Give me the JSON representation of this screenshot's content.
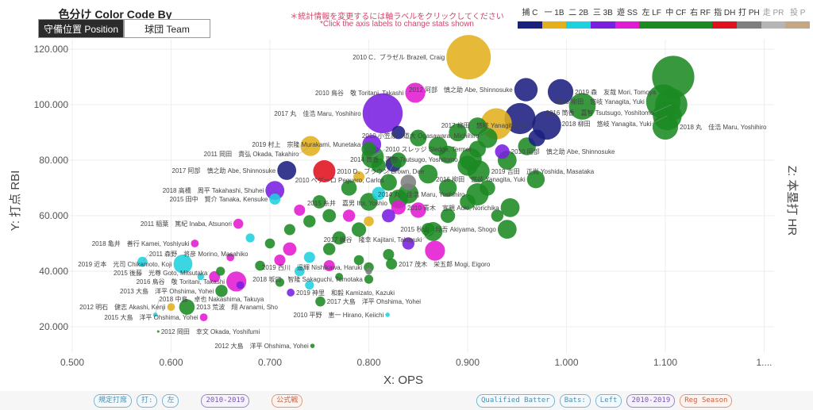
{
  "controls": {
    "title": "色分け Color Code By",
    "position_button": "守備位置 Position",
    "team_button": "球団 Team"
  },
  "notes": {
    "jp": "＊統計情報を変更するには軸ラベルをクリックしてください",
    "en": "*Click the axis labels to change stats shown"
  },
  "legend": [
    {
      "label": "捕 C",
      "key": "C",
      "color": "#1b1f7e"
    },
    {
      "label": "一 1B",
      "key": "1B",
      "color": "#e3b01c"
    },
    {
      "label": "二 2B",
      "key": "2B",
      "color": "#1fd0de"
    },
    {
      "label": "三 3B",
      "key": "3B",
      "color": "#7a1fe0"
    },
    {
      "label": "遊 SS",
      "key": "SS",
      "color": "#e21ad3"
    },
    {
      "label": "左 LF",
      "key": "LF",
      "color": "#1b8a22"
    },
    {
      "label": "中 CF",
      "key": "CF",
      "color": "#1b8a22"
    },
    {
      "label": "右 RF",
      "key": "RF",
      "color": "#1b8a22"
    },
    {
      "label": "指 DH",
      "key": "DH",
      "color": "#e0101c"
    },
    {
      "label": "打 PH",
      "key": "PH",
      "color": "#7f7f7f"
    },
    {
      "label": "走 PR",
      "key": "PR",
      "color": "#b5b5b5"
    },
    {
      "label": "投 P",
      "key": "P",
      "color": "#c4a886"
    }
  ],
  "footer": {
    "left": [
      "規定打席",
      "打:",
      "左",
      "2010-2019",
      "公式戦"
    ],
    "right": [
      "Qualified Batter",
      "Bats:",
      "Left",
      "2010-2019",
      "Reg Season"
    ]
  },
  "chart_data": {
    "type": "scatter",
    "xlabel": "X: OPS",
    "ylabel": "Y: 打点 RBI",
    "zlabel": "Z: 本塁打 HR",
    "xlim": [
      0.475,
      1.21
    ],
    "ylim": [
      12,
      123
    ],
    "x_ticks": [
      0.5,
      0.6,
      0.7,
      0.8,
      0.9,
      1.0,
      1.1,
      1.2
    ],
    "x_tick_labels": [
      "0.500",
      "0.600",
      "0.700",
      "0.800",
      "0.900",
      "1.000",
      "1.100",
      "1...."
    ],
    "y_ticks": [
      20,
      40,
      60,
      80,
      100,
      120
    ],
    "y_tick_labels": [
      "20.000",
      "40.000",
      "60.000",
      "80.000",
      "100.000",
      "120.000"
    ],
    "grid": true,
    "size_encoding": "HR",
    "color_encoding": "position",
    "points": [
      {
        "x": 0.901,
        "y": 117.1,
        "z": 40,
        "pos": "1B",
        "label": "2010 C．ブラゼル Brazell, Craig"
      },
      {
        "x": 1.108,
        "y": 110.0,
        "z": 38,
        "pos": "CF"
      },
      {
        "x": 1.098,
        "y": 101.1,
        "z": 31,
        "pos": "RF",
        "label": "2015 柳田　悠岐 Yanagita, Yuki"
      },
      {
        "x": 1.106,
        "y": 100.0,
        "z": 29,
        "pos": "LF",
        "label": "2016 筒香　嘉智 Tsutsugo, Yoshitomo"
      },
      {
        "x": 1.102,
        "y": 96.0,
        "z": 26,
        "pos": "CF",
        "label": "2018 柳田　悠岐 Yanagita, Yuki"
      },
      {
        "x": 1.1,
        "y": 92.0,
        "z": 23,
        "pos": "CF",
        "label": "2018 丸　佳浩 Maru, Yoshihiro"
      },
      {
        "x": 0.847,
        "y": 104.3,
        "z": 18,
        "pos": "SS",
        "label": "2010 鳥谷　敬 Toritani, Takashi"
      },
      {
        "x": 0.959,
        "y": 105.4,
        "z": 21,
        "pos": "C",
        "label": "2012 阿部　慎之助 Abe, Shinnosuke"
      },
      {
        "x": 0.994,
        "y": 104.6,
        "z": 23,
        "pos": "C",
        "label": "2019 森　友哉 Mori, Tomoya"
      },
      {
        "x": 1.016,
        "y": 99.4,
        "z": 24,
        "pos": "LF"
      },
      {
        "x": 0.814,
        "y": 96.9,
        "z": 36,
        "pos": "3B",
        "label": "2017 丸　佳浩 Maru, Yoshihiro"
      },
      {
        "x": 0.803,
        "y": 85.7,
        "z": 17,
        "pos": "3B",
        "label": "2019 村上　宗隆 Murakami, Munetaka"
      },
      {
        "x": 0.741,
        "y": 85.1,
        "z": 18,
        "pos": "1B",
        "label": "2011 岡田　貴弘 Okada, Takahiro"
      },
      {
        "x": 0.717,
        "y": 76.3,
        "z": 17,
        "pos": "C",
        "label": "2017 阿部　慎之助 Abe, Shinnosuke"
      },
      {
        "x": 0.755,
        "y": 76.0,
        "z": 20,
        "pos": "DH",
        "label": "2010 D．ブラウン Brown, Dee"
      },
      {
        "x": 0.705,
        "y": 69.1,
        "z": 17,
        "pos": "3B",
        "label": "2018 高橋　周平 Takahashi, Shuhei"
      },
      {
        "x": 0.705,
        "y": 66.0,
        "z": 10,
        "pos": "2B",
        "label": "2015 田中　賢介 Tanaka, Kensuke"
      },
      {
        "x": 0.98,
        "y": 92.6,
        "z": 26,
        "pos": "C",
        "label": "2017 柳田　悠岐 Yanagita, Yuki"
      },
      {
        "x": 0.953,
        "y": 95.0,
        "z": 28,
        "pos": "C"
      },
      {
        "x": 0.969,
        "y": 73.1,
        "z": 16,
        "pos": "CF",
        "label": "2016 柳田　悠岐 Yanagita, Yuki"
      },
      {
        "x": 0.91,
        "y": 67.7,
        "z": 20,
        "pos": "CF",
        "label": "2014 丸　佳浩 Maru, Yoshihiro"
      },
      {
        "x": 0.943,
        "y": 62.9,
        "z": 17,
        "pos": "LF",
        "label": "2010 青木　宣親 Aoki, Norichika"
      },
      {
        "x": 0.94,
        "y": 55.1,
        "z": 17,
        "pos": "RF",
        "label": "2015 秋山　翔吾 Akiyama, Shogo"
      },
      {
        "x": 0.867,
        "y": 47.4,
        "z": 18,
        "pos": "SS"
      },
      {
        "x": 0.743,
        "y": 13.1,
        "z": 4,
        "pos": "CF",
        "label": "2012 大島　洋平 Ohshima, Yohei"
      },
      {
        "x": 0.587,
        "y": 18.3,
        "z": 2,
        "pos": "LF",
        "label": "2012 岡田　幸文 Okada, Yoshifumi"
      },
      {
        "x": 0.6,
        "y": 27.1,
        "z": 7,
        "pos": "1B",
        "label": "2012 明石　健志 Akashi, Kenji"
      },
      {
        "x": 0.633,
        "y": 23.4,
        "z": 7,
        "pos": "SS",
        "label": "2015 大島　洋平 Ohshima, Yohei"
      },
      {
        "x": 0.584,
        "y": 24.3,
        "z": 4,
        "pos": "2B",
        "label": "2018 中島　卓也 Nakashima, Takuya"
      },
      {
        "x": 0.616,
        "y": 27.1,
        "z": 14,
        "pos": "LF",
        "label": "2013 荒波　翔 Aranami, Sho"
      },
      {
        "x": 0.651,
        "y": 32.9,
        "z": 11,
        "pos": "LF",
        "label": "2013 大島　洋平 Ohshima, Yohei"
      },
      {
        "x": 0.666,
        "y": 36.3,
        "z": 18,
        "pos": "SS",
        "label": "2016 鳥谷　敬 Toritani, Takashi"
      },
      {
        "x": 0.644,
        "y": 38.0,
        "z": 10,
        "pos": "SS",
        "label": "2015 後藤　光尊 Goto, Mitsutaka"
      },
      {
        "x": 0.612,
        "y": 42.6,
        "z": 17,
        "pos": "2B",
        "label": "2019 近本　光司 Chikamoto, Koji"
      },
      {
        "x": 0.571,
        "y": 43.4,
        "z": 9,
        "pos": "2B",
        "label": "2011 森野　将彦 Morino, Masahiko"
      },
      {
        "x": 0.624,
        "y": 50.0,
        "z": 7,
        "pos": "SS",
        "label": "2018 亀井　善行 Kamei, Yoshiyuki"
      },
      {
        "x": 0.668,
        "y": 57.1,
        "z": 9,
        "pos": "SS",
        "label": "2011 稲葉　篤紀 Inaba, Atsunori"
      },
      {
        "x": 0.721,
        "y": 32.3,
        "z": 7,
        "pos": "3B",
        "label": "2019 神里　和毅 Kamizato, Kazuki"
      },
      {
        "x": 0.819,
        "y": 24.3,
        "z": 4,
        "pos": "2B",
        "label": "2010 平野　恵一 Hirano, Keiichi"
      },
      {
        "x": 0.751,
        "y": 29.1,
        "z": 9,
        "pos": "LF",
        "label": "2017 大島　洋平 Ohshima, Yohei"
      },
      {
        "x": 0.8,
        "y": 37.1,
        "z": 8,
        "pos": "LF",
        "label": "2018 坂口　智隆 Sakaguchi, Tomotaka"
      },
      {
        "x": 0.8,
        "y": 41.4,
        "z": 9,
        "pos": "CF",
        "label": "2019 西川　遥輝 Nishikawa, Haruki"
      },
      {
        "x": 0.823,
        "y": 42.6,
        "z": 10,
        "pos": "LF",
        "label": "2017 茂木　栄五郎 Mogi, Eigoro"
      },
      {
        "x": 0.865,
        "y": 54.3,
        "z": 17,
        "pos": "LF",
        "label": "2017 梶谷　隆幸 Kajitani, Takayuki"
      },
      {
        "x": 0.83,
        "y": 66.0,
        "z": 17,
        "pos": "LF",
        "label": "2015 糸井　嘉男 Itoi, Yoshio"
      },
      {
        "x": 0.911,
        "y": 76.0,
        "z": 20,
        "pos": "RF",
        "label": "2019 吉田　正尚 Yoshida, Masataka"
      },
      {
        "x": 0.903,
        "y": 80.3,
        "z": 20,
        "pos": "LF",
        "label": "2014 筒香　嘉智 Tsutsugo, Yoshitomo"
      },
      {
        "x": 0.935,
        "y": 83.1,
        "z": 13,
        "pos": "3B",
        "label": "2010 阿部　慎之助 Abe, Shinnosuke"
      },
      {
        "x": 0.929,
        "y": 93.1,
        "z": 28,
        "pos": "1B",
        "label": "2010 小笠原　道大 Ogasawara, Michihiro"
      },
      {
        "x": 0.804,
        "y": 81.1,
        "z": 20,
        "pos": "LF",
        "label": "2010 スレッジ Sledge, Termel"
      },
      {
        "x": 0.825,
        "y": 78.6,
        "z": 14,
        "pos": "C",
        "label": "2010 ペゲーロ Peguero, Carlos"
      },
      {
        "x": 0.78,
        "y": 70,
        "z": 14,
        "pos": "LF"
      },
      {
        "x": 0.8,
        "y": 65,
        "z": 16,
        "pos": "CF"
      },
      {
        "x": 0.82,
        "y": 72,
        "z": 15,
        "pos": "RF"
      },
      {
        "x": 0.84,
        "y": 68,
        "z": 18,
        "pos": "LF"
      },
      {
        "x": 0.86,
        "y": 75,
        "z": 17,
        "pos": "CF"
      },
      {
        "x": 0.88,
        "y": 70,
        "z": 16,
        "pos": "RF"
      },
      {
        "x": 0.9,
        "y": 78,
        "z": 18,
        "pos": "LF"
      },
      {
        "x": 0.87,
        "y": 85,
        "z": 17,
        "pos": "CF"
      },
      {
        "x": 0.89,
        "y": 90,
        "z": 16,
        "pos": "RF"
      },
      {
        "x": 0.91,
        "y": 92,
        "z": 17,
        "pos": "LF"
      },
      {
        "x": 0.92,
        "y": 88,
        "z": 18,
        "pos": "CF"
      },
      {
        "x": 0.85,
        "y": 88,
        "z": 15,
        "pos": "LF"
      },
      {
        "x": 0.83,
        "y": 80,
        "z": 14,
        "pos": "RF"
      },
      {
        "x": 0.81,
        "y": 78,
        "z": 13,
        "pos": "LF"
      },
      {
        "x": 0.76,
        "y": 60,
        "z": 12,
        "pos": "CF"
      },
      {
        "x": 0.74,
        "y": 58,
        "z": 11,
        "pos": "LF"
      },
      {
        "x": 0.72,
        "y": 55,
        "z": 10,
        "pos": "RF"
      },
      {
        "x": 0.77,
        "y": 52,
        "z": 12,
        "pos": "LF"
      },
      {
        "x": 0.79,
        "y": 55,
        "z": 13,
        "pos": "CF"
      },
      {
        "x": 0.75,
        "y": 65,
        "z": 12,
        "pos": "LF"
      },
      {
        "x": 0.73,
        "y": 62,
        "z": 10,
        "pos": "SS"
      },
      {
        "x": 0.78,
        "y": 60,
        "z": 11,
        "pos": "SS"
      },
      {
        "x": 0.82,
        "y": 60,
        "z": 12,
        "pos": "3B"
      },
      {
        "x": 0.83,
        "y": 63,
        "z": 13,
        "pos": "SS"
      },
      {
        "x": 0.8,
        "y": 58,
        "z": 9,
        "pos": "1B"
      },
      {
        "x": 0.76,
        "y": 48,
        "z": 11,
        "pos": "LF"
      },
      {
        "x": 0.74,
        "y": 45,
        "z": 10,
        "pos": "2B"
      },
      {
        "x": 0.72,
        "y": 48,
        "z": 12,
        "pos": "SS"
      },
      {
        "x": 0.7,
        "y": 50,
        "z": 9,
        "pos": "LF"
      },
      {
        "x": 0.68,
        "y": 52,
        "z": 8,
        "pos": "2B"
      },
      {
        "x": 0.71,
        "y": 44,
        "z": 10,
        "pos": "SS"
      },
      {
        "x": 0.69,
        "y": 42,
        "z": 9,
        "pos": "LF"
      },
      {
        "x": 0.73,
        "y": 40,
        "z": 9,
        "pos": "2B"
      },
      {
        "x": 0.76,
        "y": 42,
        "z": 10,
        "pos": "SS"
      },
      {
        "x": 0.79,
        "y": 44,
        "z": 9,
        "pos": "LF"
      },
      {
        "x": 0.82,
        "y": 46,
        "z": 10,
        "pos": "LF"
      },
      {
        "x": 0.84,
        "y": 50,
        "z": 11,
        "pos": "3B"
      },
      {
        "x": 0.86,
        "y": 55,
        "z": 12,
        "pos": "LF"
      },
      {
        "x": 0.88,
        "y": 60,
        "z": 13,
        "pos": "CF"
      },
      {
        "x": 0.9,
        "y": 65,
        "z": 14,
        "pos": "RF"
      },
      {
        "x": 0.92,
        "y": 70,
        "z": 14,
        "pos": "LF"
      },
      {
        "x": 0.94,
        "y": 80,
        "z": 17,
        "pos": "CF"
      },
      {
        "x": 0.96,
        "y": 85,
        "z": 16,
        "pos": "RF"
      },
      {
        "x": 0.93,
        "y": 60,
        "z": 11,
        "pos": "LF"
      },
      {
        "x": 0.85,
        "y": 62,
        "z": 14,
        "pos": "SS"
      },
      {
        "x": 0.81,
        "y": 68,
        "z": 12,
        "pos": "2B"
      },
      {
        "x": 0.66,
        "y": 45,
        "z": 7,
        "pos": "SS"
      },
      {
        "x": 0.65,
        "y": 40,
        "z": 8,
        "pos": "LF"
      },
      {
        "x": 0.63,
        "y": 38,
        "z": 6,
        "pos": "2B"
      },
      {
        "x": 0.67,
        "y": 35,
        "z": 7,
        "pos": "3B"
      },
      {
        "x": 0.71,
        "y": 36,
        "z": 8,
        "pos": "LF"
      },
      {
        "x": 0.74,
        "y": 35,
        "z": 8,
        "pos": "2B"
      },
      {
        "x": 0.77,
        "y": 38,
        "z": 7,
        "pos": "LF"
      },
      {
        "x": 0.8,
        "y": 40,
        "z": 6,
        "pos": "PH"
      },
      {
        "x": 0.84,
        "y": 72,
        "z": 14,
        "pos": "PH"
      },
      {
        "x": 0.79,
        "y": 74,
        "z": 10,
        "pos": "1B"
      },
      {
        "x": 0.8,
        "y": 84,
        "z": 13,
        "pos": "LF"
      },
      {
        "x": 0.88,
        "y": 82,
        "z": 16,
        "pos": "LF"
      },
      {
        "x": 0.91,
        "y": 84,
        "z": 15,
        "pos": "CF"
      },
      {
        "x": 0.97,
        "y": 88,
        "z": 15,
        "pos": "C"
      },
      {
        "x": 0.83,
        "y": 90,
        "z": 12,
        "pos": "C"
      }
    ]
  }
}
